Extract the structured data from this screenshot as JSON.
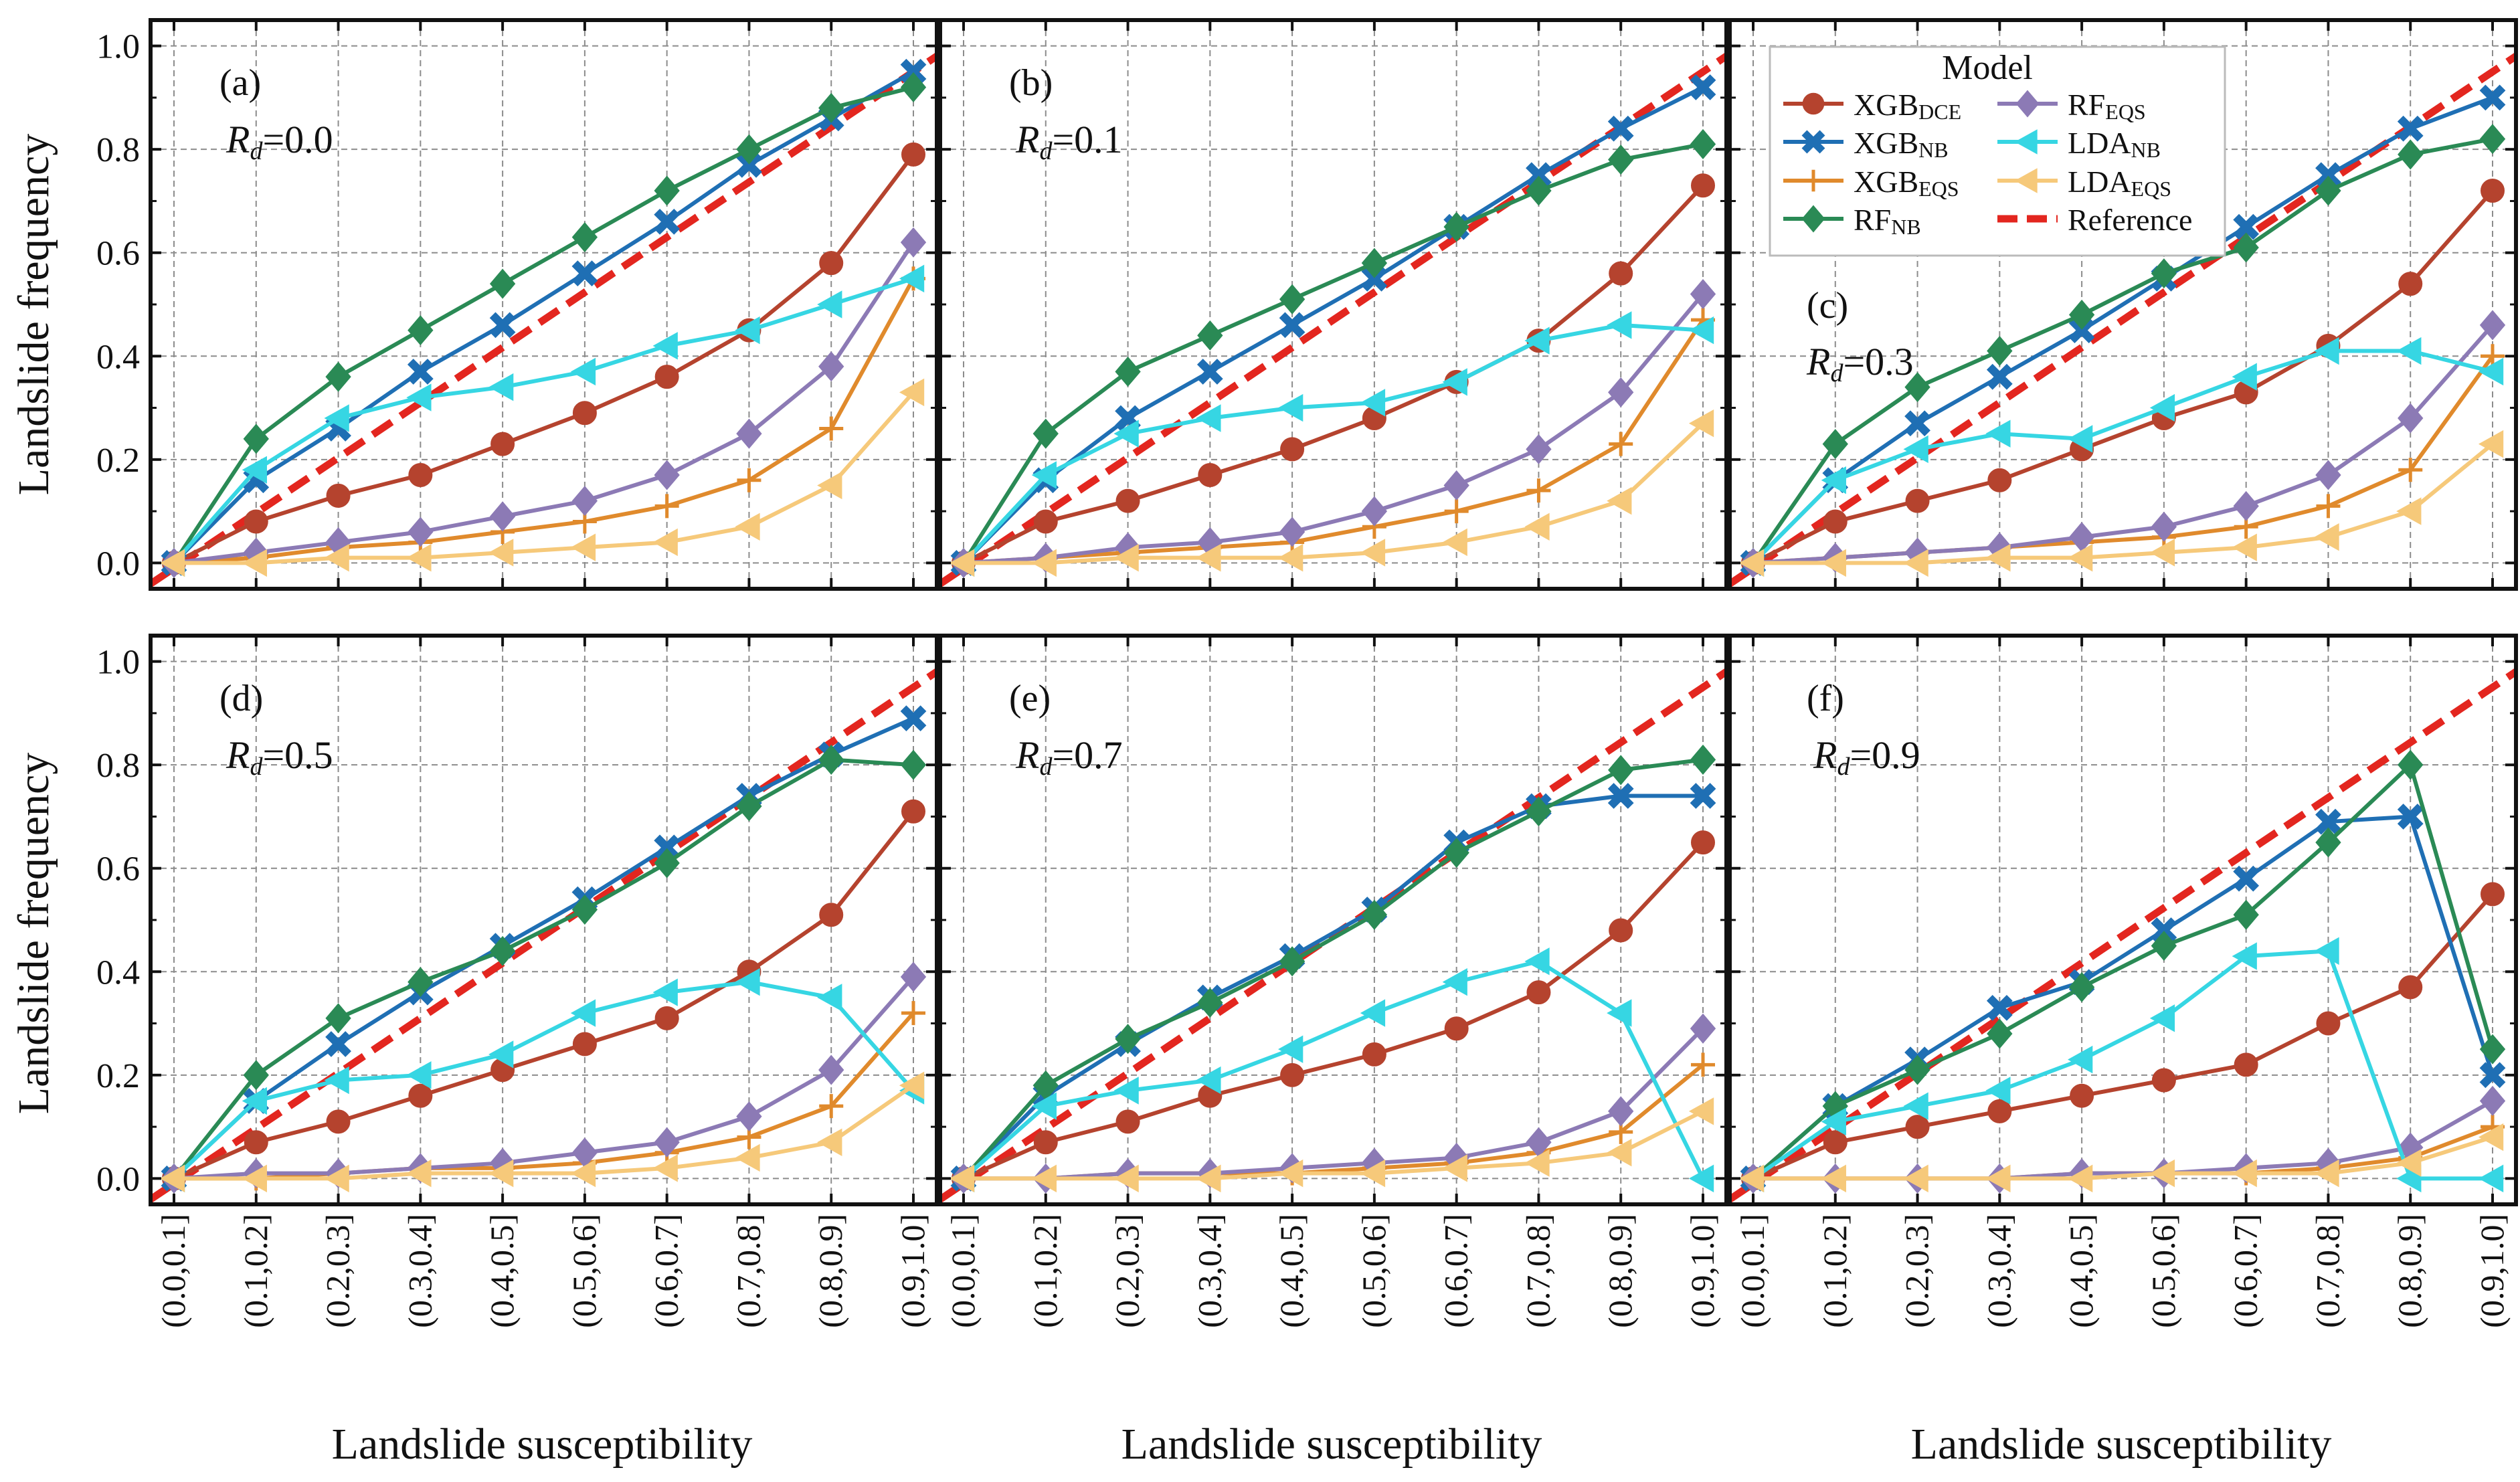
{
  "figure": {
    "ylabel": "Landslide frequency",
    "xlabel": "Landslide susceptibility"
  },
  "legend": {
    "title": "Model",
    "entries": [
      {
        "base": "XGB",
        "sub": "DCE",
        "color": "#b5432e",
        "marker": "circle",
        "line": "solid"
      },
      {
        "base": "XGB",
        "sub": "NB",
        "color": "#1f6fb4",
        "marker": "x",
        "line": "solid"
      },
      {
        "base": "XGB",
        "sub": "EQS",
        "color": "#e08a2c",
        "marker": "plus",
        "line": "solid"
      },
      {
        "base": "RF",
        "sub": "NB",
        "color": "#2a8a55",
        "marker": "diamond",
        "line": "solid"
      },
      {
        "base": "RF",
        "sub": "EQS",
        "color": "#8c7ab5",
        "marker": "diamond",
        "line": "solid"
      },
      {
        "base": "LDA",
        "sub": "NB",
        "color": "#36d6e3",
        "marker": "triangle-left",
        "line": "solid"
      },
      {
        "base": "LDA",
        "sub": "EQS",
        "color": "#f6c97a",
        "marker": "triangle-left",
        "line": "solid"
      },
      {
        "base": "Reference",
        "sub": "",
        "color": "#e3261f",
        "marker": "none",
        "line": "dashed"
      }
    ]
  },
  "chart_data": [
    {
      "type": "line",
      "panel_label": "(a)",
      "rd_label": "0.0",
      "categories": [
        "(0.0,0.1]",
        "(0.1,0.2]",
        "(0.2,0.3]",
        "(0.3,0.4]",
        "(0.4,0.5]",
        "(0.5,0.6]",
        "(0.6,0.7]",
        "(0.7,0.8]",
        "(0.8,0.9]",
        "(0.9,1.0]"
      ],
      "ylim": [
        -0.05,
        1.05
      ],
      "yticks": [
        "0.0",
        "0.2",
        "0.4",
        "0.6",
        "0.8",
        "1.0"
      ],
      "series": [
        {
          "name": "XGB_DCE",
          "values": [
            0.0,
            0.08,
            0.13,
            0.17,
            0.23,
            0.29,
            0.36,
            0.45,
            0.58,
            0.79
          ]
        },
        {
          "name": "XGB_NB",
          "values": [
            0.0,
            0.16,
            0.26,
            0.37,
            0.46,
            0.56,
            0.66,
            0.77,
            0.86,
            0.95
          ]
        },
        {
          "name": "XGB_EQS",
          "values": [
            0.0,
            0.01,
            0.03,
            0.04,
            0.06,
            0.08,
            0.11,
            0.16,
            0.26,
            0.55
          ]
        },
        {
          "name": "RF_NB",
          "values": [
            0.0,
            0.24,
            0.36,
            0.45,
            0.54,
            0.63,
            0.72,
            0.8,
            0.88,
            0.92
          ]
        },
        {
          "name": "RF_EQS",
          "values": [
            0.0,
            0.02,
            0.04,
            0.06,
            0.09,
            0.12,
            0.17,
            0.25,
            0.38,
            0.62
          ]
        },
        {
          "name": "LDA_NB",
          "values": [
            0.0,
            0.18,
            0.28,
            0.32,
            0.34,
            0.37,
            0.42,
            0.45,
            0.5,
            0.55
          ]
        },
        {
          "name": "LDA_EQS",
          "values": [
            0.0,
            0.0,
            0.01,
            0.01,
            0.02,
            0.03,
            0.04,
            0.07,
            0.15,
            0.33
          ]
        }
      ]
    },
    {
      "type": "line",
      "panel_label": "(b)",
      "rd_label": "0.1",
      "categories": [
        "(0.0,0.1]",
        "(0.1,0.2]",
        "(0.2,0.3]",
        "(0.3,0.4]",
        "(0.4,0.5]",
        "(0.5,0.6]",
        "(0.6,0.7]",
        "(0.7,0.8]",
        "(0.8,0.9]",
        "(0.9,1.0]"
      ],
      "ylim": [
        -0.05,
        1.05
      ],
      "yticks": [
        "0.0",
        "0.2",
        "0.4",
        "0.6",
        "0.8",
        "1.0"
      ],
      "series": [
        {
          "name": "XGB_DCE",
          "values": [
            0.0,
            0.08,
            0.12,
            0.17,
            0.22,
            0.28,
            0.35,
            0.43,
            0.56,
            0.73
          ]
        },
        {
          "name": "XGB_NB",
          "values": [
            0.0,
            0.16,
            0.28,
            0.37,
            0.46,
            0.55,
            0.65,
            0.75,
            0.84,
            0.92
          ]
        },
        {
          "name": "XGB_EQS",
          "values": [
            0.0,
            0.01,
            0.02,
            0.03,
            0.04,
            0.07,
            0.1,
            0.14,
            0.23,
            0.47
          ]
        },
        {
          "name": "RF_NB",
          "values": [
            0.0,
            0.25,
            0.37,
            0.44,
            0.51,
            0.58,
            0.65,
            0.72,
            0.78,
            0.81
          ]
        },
        {
          "name": "RF_EQS",
          "values": [
            0.0,
            0.01,
            0.03,
            0.04,
            0.06,
            0.1,
            0.15,
            0.22,
            0.33,
            0.52
          ]
        },
        {
          "name": "LDA_NB",
          "values": [
            0.0,
            0.17,
            0.25,
            0.28,
            0.3,
            0.31,
            0.35,
            0.43,
            0.46,
            0.45
          ]
        },
        {
          "name": "LDA_EQS",
          "values": [
            0.0,
            0.0,
            0.01,
            0.01,
            0.01,
            0.02,
            0.04,
            0.07,
            0.12,
            0.27
          ]
        }
      ]
    },
    {
      "type": "line",
      "panel_label": "(c)",
      "rd_label": "0.3",
      "categories": [
        "(0.0,0.1]",
        "(0.1,0.2]",
        "(0.2,0.3]",
        "(0.3,0.4]",
        "(0.4,0.5]",
        "(0.5,0.6]",
        "(0.6,0.7]",
        "(0.7,0.8]",
        "(0.8,0.9]",
        "(0.9,1.0]"
      ],
      "ylim": [
        -0.05,
        1.05
      ],
      "yticks": [
        "0.0",
        "0.2",
        "0.4",
        "0.6",
        "0.8",
        "1.0"
      ],
      "series": [
        {
          "name": "XGB_DCE",
          "values": [
            0.0,
            0.08,
            0.12,
            0.16,
            0.22,
            0.28,
            0.33,
            0.42,
            0.54,
            0.72
          ]
        },
        {
          "name": "XGB_NB",
          "values": [
            0.0,
            0.16,
            0.27,
            0.36,
            0.45,
            0.55,
            0.65,
            0.75,
            0.84,
            0.9
          ]
        },
        {
          "name": "XGB_EQS",
          "values": [
            0.0,
            0.01,
            0.02,
            0.03,
            0.04,
            0.05,
            0.07,
            0.11,
            0.18,
            0.4
          ]
        },
        {
          "name": "RF_NB",
          "values": [
            0.0,
            0.23,
            0.34,
            0.41,
            0.48,
            0.56,
            0.61,
            0.72,
            0.79,
            0.82
          ]
        },
        {
          "name": "RF_EQS",
          "values": [
            0.0,
            0.01,
            0.02,
            0.03,
            0.05,
            0.07,
            0.11,
            0.17,
            0.28,
            0.46
          ]
        },
        {
          "name": "LDA_NB",
          "values": [
            0.0,
            0.16,
            0.22,
            0.25,
            0.24,
            0.3,
            0.36,
            0.41,
            0.41,
            0.37
          ]
        },
        {
          "name": "LDA_EQS",
          "values": [
            0.0,
            0.0,
            0.0,
            0.01,
            0.01,
            0.02,
            0.03,
            0.05,
            0.1,
            0.23
          ]
        }
      ]
    },
    {
      "type": "line",
      "panel_label": "(d)",
      "rd_label": "0.5",
      "categories": [
        "(0.0,0.1]",
        "(0.1,0.2]",
        "(0.2,0.3]",
        "(0.3,0.4]",
        "(0.4,0.5]",
        "(0.5,0.6]",
        "(0.6,0.7]",
        "(0.7,0.8]",
        "(0.8,0.9]",
        "(0.9,1.0]"
      ],
      "ylim": [
        -0.05,
        1.05
      ],
      "yticks": [
        "0.0",
        "0.2",
        "0.4",
        "0.6",
        "0.8",
        "1.0"
      ],
      "series": [
        {
          "name": "XGB_DCE",
          "values": [
            0.0,
            0.07,
            0.11,
            0.16,
            0.21,
            0.26,
            0.31,
            0.4,
            0.51,
            0.71
          ]
        },
        {
          "name": "XGB_NB",
          "values": [
            0.0,
            0.15,
            0.26,
            0.36,
            0.45,
            0.54,
            0.64,
            0.74,
            0.82,
            0.89
          ]
        },
        {
          "name": "XGB_EQS",
          "values": [
            0.0,
            0.0,
            0.01,
            0.02,
            0.02,
            0.03,
            0.05,
            0.08,
            0.14,
            0.32
          ]
        },
        {
          "name": "RF_NB",
          "values": [
            0.0,
            0.2,
            0.31,
            0.38,
            0.44,
            0.52,
            0.61,
            0.72,
            0.81,
            0.8
          ]
        },
        {
          "name": "RF_EQS",
          "values": [
            0.0,
            0.01,
            0.01,
            0.02,
            0.03,
            0.05,
            0.07,
            0.12,
            0.21,
            0.39
          ]
        },
        {
          "name": "LDA_NB",
          "values": [
            0.0,
            0.15,
            0.19,
            0.2,
            0.24,
            0.32,
            0.36,
            0.38,
            0.35,
            0.17
          ]
        },
        {
          "name": "LDA_EQS",
          "values": [
            0.0,
            0.0,
            0.0,
            0.01,
            0.01,
            0.01,
            0.02,
            0.04,
            0.07,
            0.18
          ]
        }
      ]
    },
    {
      "type": "line",
      "panel_label": "(e)",
      "rd_label": "0.7",
      "categories": [
        "(0.0,0.1]",
        "(0.1,0.2]",
        "(0.2,0.3]",
        "(0.3,0.4]",
        "(0.4,0.5]",
        "(0.5,0.6]",
        "(0.6,0.7]",
        "(0.7,0.8]",
        "(0.8,0.9]",
        "(0.9,1.0]"
      ],
      "ylim": [
        -0.05,
        1.05
      ],
      "yticks": [
        "0.0",
        "0.2",
        "0.4",
        "0.6",
        "0.8",
        "1.0"
      ],
      "series": [
        {
          "name": "XGB_DCE",
          "values": [
            0.0,
            0.07,
            0.11,
            0.16,
            0.2,
            0.24,
            0.29,
            0.36,
            0.48,
            0.65
          ]
        },
        {
          "name": "XGB_NB",
          "values": [
            0.0,
            0.16,
            0.26,
            0.35,
            0.43,
            0.52,
            0.65,
            0.72,
            0.74,
            0.74
          ]
        },
        {
          "name": "XGB_EQS",
          "values": [
            0.0,
            0.0,
            0.01,
            0.01,
            0.01,
            0.02,
            0.03,
            0.05,
            0.09,
            0.22
          ]
        },
        {
          "name": "RF_NB",
          "values": [
            0.0,
            0.18,
            0.27,
            0.34,
            0.42,
            0.51,
            0.63,
            0.71,
            0.79,
            0.81
          ]
        },
        {
          "name": "RF_EQS",
          "values": [
            0.0,
            0.0,
            0.01,
            0.01,
            0.02,
            0.03,
            0.04,
            0.07,
            0.13,
            0.29
          ]
        },
        {
          "name": "LDA_NB",
          "values": [
            0.0,
            0.14,
            0.17,
            0.19,
            0.25,
            0.32,
            0.38,
            0.42,
            0.32,
            0.0
          ]
        },
        {
          "name": "LDA_EQS",
          "values": [
            0.0,
            0.0,
            0.0,
            0.0,
            0.01,
            0.01,
            0.02,
            0.03,
            0.05,
            0.13
          ]
        }
      ]
    },
    {
      "type": "line",
      "panel_label": "(f)",
      "rd_label": "0.9",
      "categories": [
        "(0.0,0.1]",
        "(0.1,0.2]",
        "(0.2,0.3]",
        "(0.3,0.4]",
        "(0.4,0.5]",
        "(0.5,0.6]",
        "(0.6,0.7]",
        "(0.7,0.8]",
        "(0.8,0.9]",
        "(0.9,1.0]"
      ],
      "ylim": [
        -0.05,
        1.05
      ],
      "yticks": [
        "0.0",
        "0.2",
        "0.4",
        "0.6",
        "0.8",
        "1.0"
      ],
      "series": [
        {
          "name": "XGB_DCE",
          "values": [
            0.0,
            0.07,
            0.1,
            0.13,
            0.16,
            0.19,
            0.22,
            0.3,
            0.37,
            0.55
          ]
        },
        {
          "name": "XGB_NB",
          "values": [
            0.0,
            0.14,
            0.23,
            0.33,
            0.38,
            0.48,
            0.58,
            0.69,
            0.7,
            0.2
          ]
        },
        {
          "name": "XGB_EQS",
          "values": [
            0.0,
            0.0,
            0.0,
            0.0,
            0.01,
            0.01,
            0.01,
            0.02,
            0.04,
            0.1
          ]
        },
        {
          "name": "RF_NB",
          "values": [
            0.0,
            0.14,
            0.21,
            0.28,
            0.37,
            0.45,
            0.51,
            0.65,
            0.8,
            0.25
          ]
        },
        {
          "name": "RF_EQS",
          "values": [
            0.0,
            0.0,
            0.0,
            0.0,
            0.01,
            0.01,
            0.02,
            0.03,
            0.06,
            0.15
          ]
        },
        {
          "name": "LDA_NB",
          "values": [
            0.0,
            0.11,
            0.14,
            0.17,
            0.23,
            0.31,
            0.43,
            0.44,
            0.0,
            0.0
          ]
        },
        {
          "name": "LDA_EQS",
          "values": [
            0.0,
            0.0,
            0.0,
            0.0,
            0.0,
            0.01,
            0.01,
            0.01,
            0.03,
            0.08
          ]
        }
      ]
    }
  ]
}
